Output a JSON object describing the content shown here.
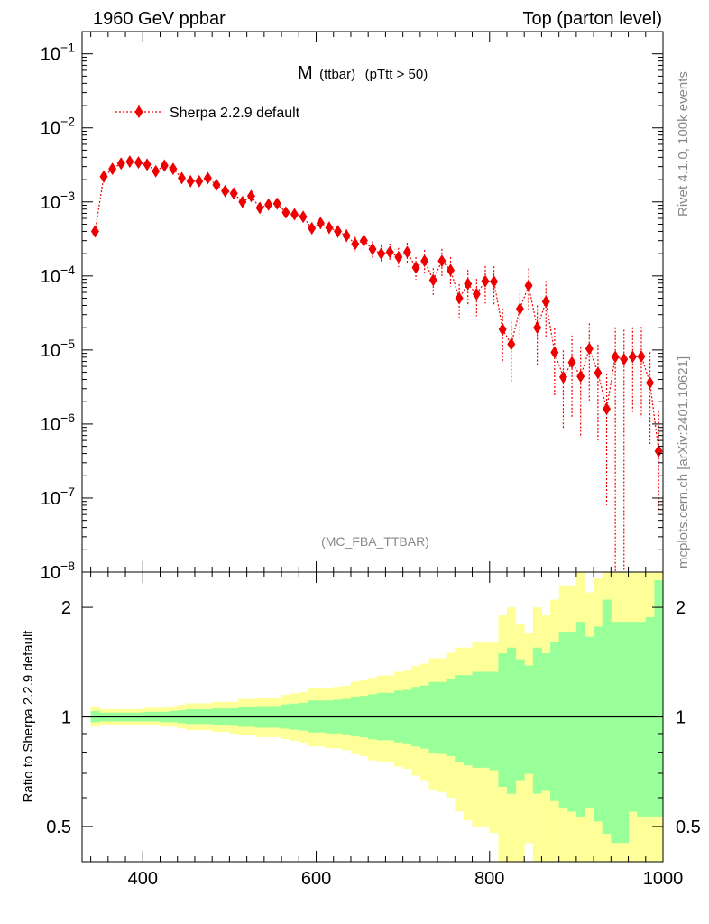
{
  "header": {
    "left_title": "1960 GeV ppbar",
    "right_title": "Top (parton level)"
  },
  "plot_title": {
    "main": "M",
    "sub": "(ttbar)",
    "cut": "(pTtt > 50)"
  },
  "legend": {
    "label": "Sherpa 2.2.9 default"
  },
  "analysis_label": "(MC_FBA_TTBAR)",
  "side_texts": {
    "upper": "Rivet 4.1.0,  100k events",
    "lower": "mcplots.cern.ch [arXiv:2401.10621]"
  },
  "ratio_ylabel": "Ratio to Sherpa 2.2.9 default",
  "colors": {
    "series": "#ee0000",
    "band_inner": "#99ff99",
    "band_outer": "#ffff99",
    "frame": "#000000",
    "side_text": "#888888"
  },
  "chart_data": [
    {
      "type": "scatter",
      "scale": "log",
      "xlim": [
        330,
        1000
      ],
      "ylim": [
        1e-08,
        0.2
      ],
      "x_ticks": [
        400,
        600,
        800,
        1000
      ],
      "y_tick_labels": [
        {
          "value": 0.1,
          "base": "10",
          "exp": "−1"
        },
        {
          "value": 0.01,
          "base": "10",
          "exp": "−2"
        },
        {
          "value": 0.001,
          "base": "10",
          "exp": "−3"
        },
        {
          "value": 0.0001,
          "base": "10",
          "exp": "−4"
        },
        {
          "value": 1e-05,
          "base": "10",
          "exp": "−5"
        },
        {
          "value": 1e-06,
          "base": "10",
          "exp": "−6"
        },
        {
          "value": 1e-07,
          "base": "10",
          "exp": "−7"
        },
        {
          "value": 1e-08,
          "base": "10",
          "exp": "−8"
        }
      ],
      "series": [
        {
          "name": "Sherpa 2.2.9 default",
          "bin_width": 10,
          "x": [
            345,
            355,
            365,
            375,
            385,
            395,
            405,
            415,
            425,
            435,
            445,
            455,
            465,
            475,
            485,
            495,
            505,
            515,
            525,
            535,
            545,
            555,
            565,
            575,
            585,
            595,
            605,
            615,
            625,
            635,
            645,
            655,
            665,
            675,
            685,
            695,
            705,
            715,
            725,
            735,
            745,
            755,
            765,
            775,
            785,
            795,
            805,
            815,
            825,
            835,
            845,
            855,
            865,
            875,
            885,
            895,
            905,
            915,
            925,
            935,
            945,
            955,
            965,
            975,
            985,
            995
          ],
          "y": [
            0.0004,
            0.0022,
            0.0028,
            0.0033,
            0.0035,
            0.0034,
            0.0032,
            0.0026,
            0.0031,
            0.0028,
            0.0021,
            0.0019,
            0.0019,
            0.0021,
            0.0017,
            0.0014,
            0.0013,
            0.001,
            0.0012,
            0.00083,
            0.00092,
            0.00095,
            0.00072,
            0.00068,
            0.00063,
            0.00044,
            0.00052,
            0.00045,
            0.0004,
            0.00035,
            0.00027,
            0.0003,
            0.00023,
            0.0002,
            0.00021,
            0.00018,
            0.00021,
            0.00013,
            0.00016,
            8.8e-05,
            0.00016,
            0.00012,
            5e-05,
            7.8e-05,
            5.7e-05,
            8.5e-05,
            8.4e-05,
            1.9e-05,
            1.2e-05,
            3.6e-05,
            7.4e-05,
            2e-05,
            4.5e-05,
            9.3e-06,
            4.3e-06,
            6.8e-06,
            4.4e-06,
            1.04e-05,
            4.9e-06,
            1.6e-06,
            8.1e-06,
            7.5e-06,
            8.1e-06,
            8.2e-06,
            3.6e-06,
            4.3e-07
          ],
          "err_up": [
            0.07,
            0.05,
            0.05,
            0.05,
            0.05,
            0.05,
            0.06,
            0.06,
            0.06,
            0.07,
            0.08,
            0.09,
            0.09,
            0.09,
            0.1,
            0.1,
            0.1,
            0.12,
            0.12,
            0.13,
            0.13,
            0.13,
            0.15,
            0.16,
            0.17,
            0.2,
            0.2,
            0.2,
            0.21,
            0.22,
            0.25,
            0.26,
            0.28,
            0.3,
            0.3,
            0.33,
            0.34,
            0.38,
            0.4,
            0.45,
            0.45,
            0.5,
            0.55,
            0.55,
            0.6,
            0.6,
            0.6,
            0.9,
            1.0,
            0.8,
            0.7,
            1.0,
            0.9,
            1.1,
            1.3,
            1.3,
            1.5,
            1.2,
            1.4,
            2.0,
            1.5,
            1.5,
            1.5,
            1.5,
            1.6,
            2.5
          ],
          "err_down": [
            0.06,
            0.05,
            0.05,
            0.05,
            0.05,
            0.05,
            0.05,
            0.05,
            0.06,
            0.06,
            0.07,
            0.08,
            0.08,
            0.08,
            0.09,
            0.09,
            0.1,
            0.11,
            0.11,
            0.12,
            0.12,
            0.12,
            0.13,
            0.14,
            0.15,
            0.17,
            0.17,
            0.18,
            0.18,
            0.19,
            0.21,
            0.22,
            0.24,
            0.25,
            0.25,
            0.27,
            0.28,
            0.31,
            0.33,
            0.37,
            0.38,
            0.4,
            0.45,
            0.48,
            0.5,
            0.5,
            0.52,
            0.65,
            0.7,
            0.6,
            0.55,
            0.7,
            0.68,
            0.75,
            0.8,
            0.82,
            0.85,
            0.8,
            0.88,
            0.95,
            0.999,
            0.999,
            0.82,
            0.85,
            0.85,
            0.85
          ]
        }
      ]
    },
    {
      "type": "area",
      "ylabel": "Ratio to Sherpa 2.2.9 default",
      "scale": "log",
      "xlim": [
        330,
        1000
      ],
      "ylim": [
        0.4,
        2.5
      ],
      "x_ticks": [
        400,
        600,
        800,
        1000
      ],
      "y_ticks": [
        0.5,
        1,
        2
      ],
      "y_tick_labels": [
        "0.5",
        "1",
        "2"
      ],
      "reference": 1
    }
  ]
}
